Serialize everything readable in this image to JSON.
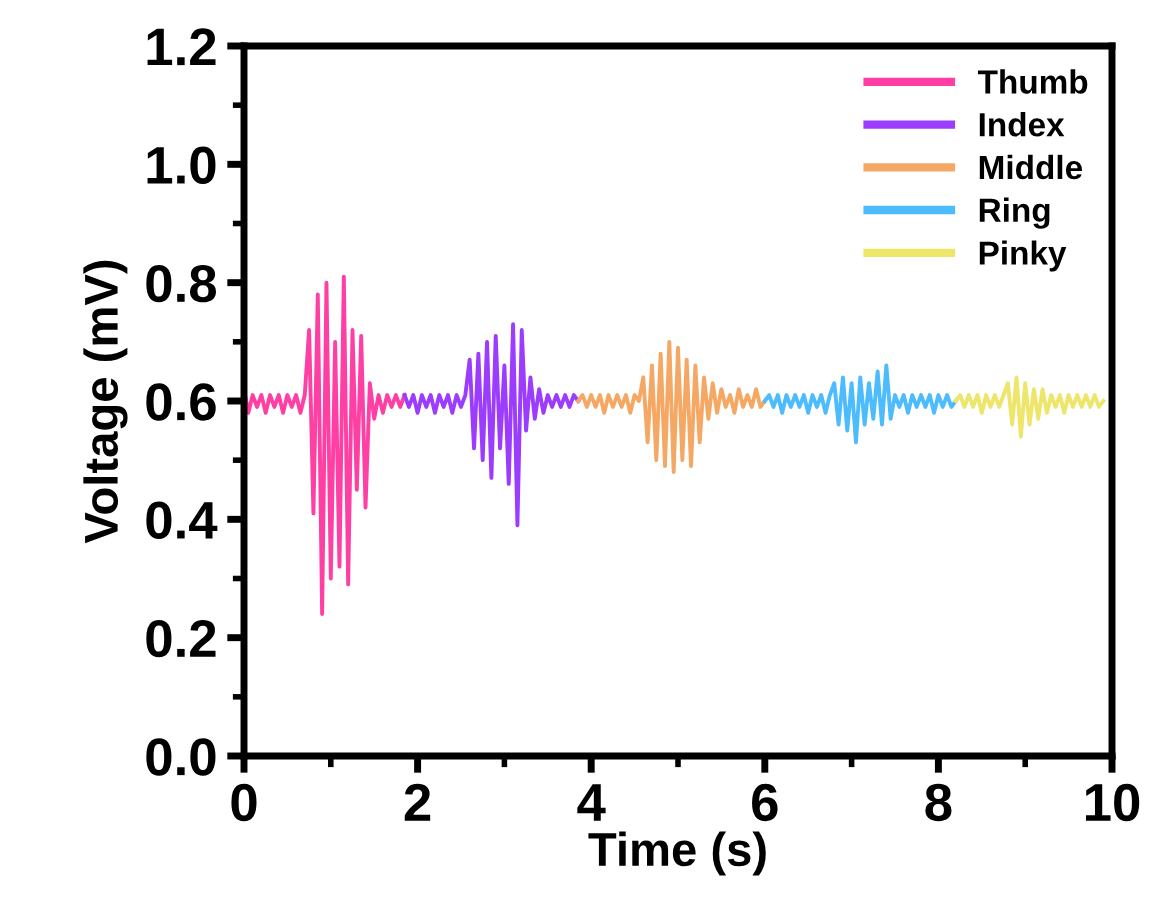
{
  "chart_data": {
    "type": "line",
    "xlabel": "Time (s)",
    "ylabel": "Voltage (mV)",
    "xlim": [
      0,
      10
    ],
    "xticks": [
      0,
      2,
      4,
      6,
      8,
      10
    ],
    "ylim": [
      0,
      1.2
    ],
    "yticks": [
      {
        "value": 0,
        "label": "0.0"
      },
      {
        "value": 0.2,
        "label": "0.2"
      },
      {
        "value": 0.4,
        "label": "0.4"
      },
      {
        "value": 0.6,
        "label": "0.6"
      },
      {
        "value": 0.8,
        "label": "0.8"
      },
      {
        "value": 1.0,
        "label": "1.0"
      },
      {
        "value": 1.2,
        "label": "1.2"
      }
    ],
    "grid": false,
    "legend": "top right",
    "series": [
      {
        "name": "Thumb",
        "color": "#ff3fa4",
        "x": [
          0.0,
          0.05,
          0.1,
          0.15,
          0.2,
          0.25,
          0.3,
          0.35,
          0.4,
          0.45,
          0.5,
          0.55,
          0.6,
          0.65,
          0.7,
          0.75,
          0.8,
          0.85,
          0.9,
          0.95,
          1.0,
          1.05,
          1.1,
          1.15,
          1.2,
          1.25,
          1.3,
          1.35,
          1.4,
          1.45,
          1.5,
          1.55,
          1.6,
          1.65,
          1.7,
          1.75,
          1.8,
          1.85
        ],
        "values": [
          0.62,
          0.58,
          0.61,
          0.59,
          0.61,
          0.58,
          0.61,
          0.59,
          0.61,
          0.58,
          0.61,
          0.59,
          0.61,
          0.58,
          0.61,
          0.72,
          0.41,
          0.78,
          0.24,
          0.8,
          0.3,
          0.7,
          0.32,
          0.81,
          0.29,
          0.72,
          0.45,
          0.71,
          0.42,
          0.63,
          0.57,
          0.61,
          0.58,
          0.61,
          0.59,
          0.61,
          0.59,
          0.61
        ]
      },
      {
        "name": "Index",
        "color": "#9b3cff",
        "x": [
          1.85,
          1.9,
          1.95,
          2.0,
          2.05,
          2.1,
          2.15,
          2.2,
          2.25,
          2.3,
          2.35,
          2.4,
          2.45,
          2.5,
          2.55,
          2.6,
          2.65,
          2.7,
          2.75,
          2.8,
          2.85,
          2.9,
          2.95,
          3.0,
          3.05,
          3.1,
          3.15,
          3.2,
          3.25,
          3.3,
          3.35,
          3.4,
          3.45,
          3.5,
          3.55,
          3.6,
          3.65,
          3.7,
          3.75,
          3.8,
          3.85
        ],
        "values": [
          0.61,
          0.59,
          0.61,
          0.58,
          0.61,
          0.59,
          0.61,
          0.58,
          0.61,
          0.59,
          0.61,
          0.58,
          0.61,
          0.59,
          0.61,
          0.67,
          0.52,
          0.68,
          0.5,
          0.7,
          0.47,
          0.71,
          0.52,
          0.66,
          0.46,
          0.73,
          0.39,
          0.72,
          0.55,
          0.64,
          0.57,
          0.62,
          0.58,
          0.61,
          0.59,
          0.61,
          0.59,
          0.61,
          0.59,
          0.61,
          0.6
        ]
      },
      {
        "name": "Middle",
        "color": "#f5a864",
        "x": [
          3.85,
          3.9,
          3.95,
          4.0,
          4.05,
          4.1,
          4.15,
          4.2,
          4.25,
          4.3,
          4.35,
          4.4,
          4.45,
          4.5,
          4.55,
          4.6,
          4.65,
          4.7,
          4.75,
          4.8,
          4.85,
          4.9,
          4.95,
          5.0,
          5.05,
          5.1,
          5.15,
          5.2,
          5.25,
          5.3,
          5.35,
          5.4,
          5.45,
          5.5,
          5.55,
          5.6,
          5.65,
          5.7,
          5.75,
          5.8,
          5.85,
          5.9,
          5.95,
          6.0
        ],
        "values": [
          0.6,
          0.61,
          0.59,
          0.61,
          0.59,
          0.61,
          0.58,
          0.61,
          0.59,
          0.61,
          0.59,
          0.61,
          0.58,
          0.61,
          0.6,
          0.64,
          0.53,
          0.66,
          0.5,
          0.68,
          0.49,
          0.7,
          0.48,
          0.69,
          0.5,
          0.67,
          0.49,
          0.66,
          0.53,
          0.64,
          0.57,
          0.63,
          0.58,
          0.62,
          0.59,
          0.61,
          0.58,
          0.62,
          0.59,
          0.61,
          0.59,
          0.62,
          0.59,
          0.6
        ]
      },
      {
        "name": "Ring",
        "color": "#4cbcff",
        "x": [
          6.0,
          6.05,
          6.1,
          6.15,
          6.2,
          6.25,
          6.3,
          6.35,
          6.4,
          6.45,
          6.5,
          6.55,
          6.6,
          6.65,
          6.7,
          6.75,
          6.8,
          6.85,
          6.9,
          6.95,
          7.0,
          7.05,
          7.1,
          7.15,
          7.2,
          7.25,
          7.3,
          7.35,
          7.4,
          7.45,
          7.5,
          7.55,
          7.6,
          7.65,
          7.7,
          7.75,
          7.8,
          7.85,
          7.9,
          7.95,
          8.0,
          8.05,
          8.1,
          8.15,
          8.2
        ],
        "values": [
          0.6,
          0.61,
          0.59,
          0.61,
          0.58,
          0.61,
          0.59,
          0.61,
          0.59,
          0.61,
          0.58,
          0.61,
          0.59,
          0.61,
          0.58,
          0.61,
          0.63,
          0.56,
          0.64,
          0.55,
          0.63,
          0.53,
          0.64,
          0.56,
          0.63,
          0.57,
          0.65,
          0.56,
          0.66,
          0.57,
          0.61,
          0.59,
          0.61,
          0.58,
          0.61,
          0.59,
          0.61,
          0.59,
          0.61,
          0.58,
          0.61,
          0.59,
          0.61,
          0.59,
          0.6
        ]
      },
      {
        "name": "Pinky",
        "color": "#ede66a",
        "x": [
          8.2,
          8.25,
          8.3,
          8.35,
          8.4,
          8.45,
          8.5,
          8.55,
          8.6,
          8.65,
          8.7,
          8.75,
          8.8,
          8.85,
          8.9,
          8.95,
          9.0,
          9.05,
          9.1,
          9.15,
          9.2,
          9.25,
          9.3,
          9.35,
          9.4,
          9.45,
          9.5,
          9.55,
          9.6,
          9.65,
          9.7,
          9.75,
          9.8,
          9.85,
          9.9
        ],
        "values": [
          0.6,
          0.61,
          0.59,
          0.61,
          0.59,
          0.61,
          0.58,
          0.61,
          0.59,
          0.61,
          0.59,
          0.61,
          0.63,
          0.56,
          0.64,
          0.54,
          0.63,
          0.56,
          0.62,
          0.57,
          0.62,
          0.58,
          0.61,
          0.59,
          0.61,
          0.58,
          0.61,
          0.59,
          0.61,
          0.59,
          0.61,
          0.59,
          0.61,
          0.59,
          0.6
        ]
      }
    ]
  }
}
